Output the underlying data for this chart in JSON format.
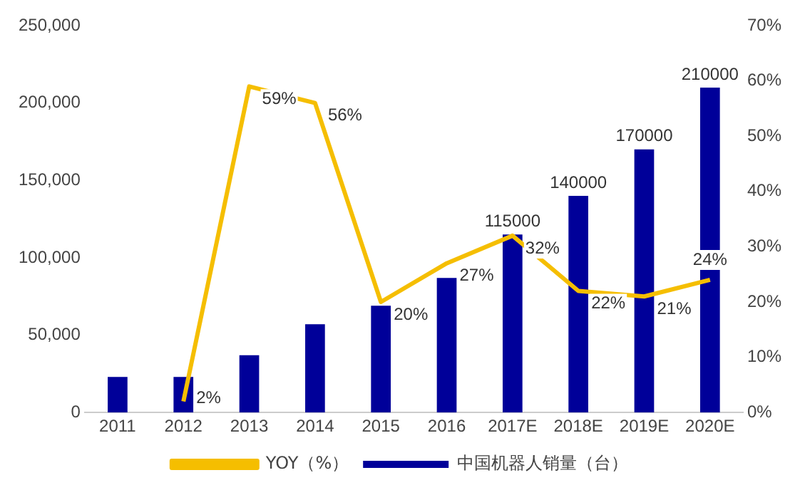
{
  "chart_data": {
    "type": "bar",
    "categories": [
      "2011",
      "2012",
      "2013",
      "2014",
      "2015",
      "2016",
      "2017E",
      "2018E",
      "2019E",
      "2020E"
    ],
    "series": [
      {
        "name": "中国机器人销量（台）",
        "color": "#000099",
        "values": [
          23000,
          23000,
          37000,
          57000,
          69000,
          87000,
          115000,
          140000,
          170000,
          210000
        ],
        "value_labels": [
          null,
          null,
          null,
          null,
          null,
          null,
          "115000",
          "140000",
          "170000",
          "210000"
        ]
      },
      {
        "name": "YOY（%）",
        "type": "line",
        "axis": "y2",
        "color": "#f5be00",
        "values": [
          null,
          2,
          59,
          56,
          20,
          27,
          32,
          22,
          21,
          24
        ],
        "value_labels": [
          null,
          "2%",
          "59%",
          "56%",
          "20%",
          "27%",
          "32%",
          "22%",
          "21%",
          "24%"
        ]
      }
    ],
    "ylim": [
      0,
      250000
    ],
    "yticks": [
      {
        "value": 0,
        "label": "0"
      },
      {
        "value": 50000,
        "label": "50,000"
      },
      {
        "value": 100000,
        "label": "100,000"
      },
      {
        "value": 150000,
        "label": "150,000"
      },
      {
        "value": 200000,
        "label": "200,000"
      },
      {
        "value": 250000,
        "label": "250,000"
      }
    ],
    "y2lim": [
      0,
      70
    ],
    "y2ticks": [
      {
        "value": 0,
        "label": "0%"
      },
      {
        "value": 10,
        "label": "10%"
      },
      {
        "value": 20,
        "label": "20%"
      },
      {
        "value": 30,
        "label": "30%"
      },
      {
        "value": 40,
        "label": "40%"
      },
      {
        "value": 50,
        "label": "50%"
      },
      {
        "value": 60,
        "label": "60%"
      },
      {
        "value": 70,
        "label": "70%"
      }
    ],
    "grid": false,
    "legend": "bottom",
    "marker": "none"
  }
}
